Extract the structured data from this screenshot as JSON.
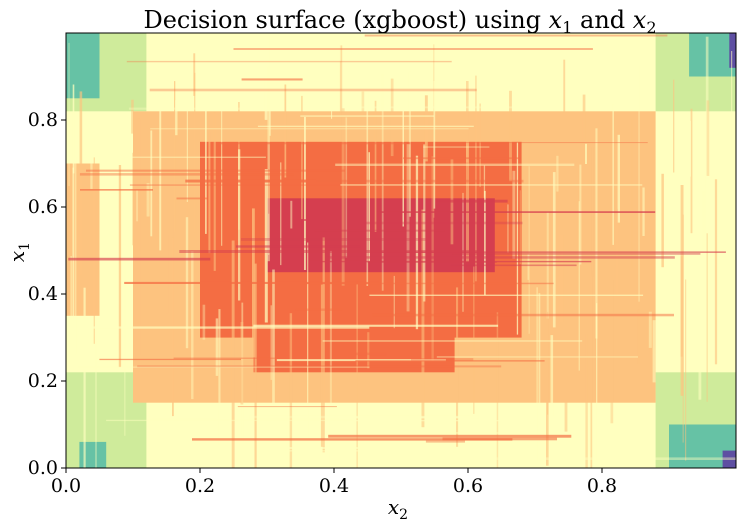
{
  "chart_data": {
    "type": "heatmap",
    "title": "Decision surface (xgboost) using x₁ and x₂",
    "title_parts": {
      "prefix": "Decision surface (xgboost) using ",
      "var1": "x",
      "sub1": "1",
      "middle": " and ",
      "var2": "x",
      "sub2": "2"
    },
    "xlabel": {
      "var": "x",
      "sub": "2"
    },
    "ylabel": {
      "var": "x",
      "sub": "1"
    },
    "xlim": [
      0,
      1
    ],
    "ylim": [
      0,
      1
    ],
    "xticks": [
      0.0,
      0.2,
      0.4,
      0.6,
      0.8
    ],
    "xtick_labels": [
      "0.0",
      "0.2",
      "0.4",
      "0.6",
      "0.8"
    ],
    "yticks": [
      0.0,
      0.2,
      0.4,
      0.6,
      0.8
    ],
    "ytick_labels": [
      "0.0",
      "0.2",
      "0.4",
      "0.6",
      "0.8"
    ],
    "grid": false,
    "colormap": "Spectral",
    "palette": [
      "#5e4fa2",
      "#66c2a5",
      "#cfeb9b",
      "#ffffbf",
      "#fdc37f",
      "#f46d43",
      "#d53e4f"
    ],
    "approx_levels_description": "low at corners, highest near the centre",
    "regions": [
      {
        "x": [
          0.0,
          1.0
        ],
        "y": [
          0.0,
          1.0
        ],
        "level": 3
      },
      {
        "x": [
          0.0,
          0.12
        ],
        "y": [
          0.0,
          0.22
        ],
        "level": 2
      },
      {
        "x": [
          0.88,
          1.0
        ],
        "y": [
          0.0,
          0.22
        ],
        "level": 2
      },
      {
        "x": [
          0.0,
          0.12
        ],
        "y": [
          0.82,
          1.0
        ],
        "level": 2
      },
      {
        "x": [
          0.88,
          1.0
        ],
        "y": [
          0.82,
          1.0
        ],
        "level": 2
      },
      {
        "x": [
          0.0,
          0.05
        ],
        "y": [
          0.85,
          1.0
        ],
        "level": 1
      },
      {
        "x": [
          0.93,
          1.0
        ],
        "y": [
          0.9,
          1.0
        ],
        "level": 1
      },
      {
        "x": [
          0.9,
          1.0
        ],
        "y": [
          0.0,
          0.1
        ],
        "level": 1
      },
      {
        "x": [
          0.02,
          0.06
        ],
        "y": [
          0.0,
          0.06
        ],
        "level": 1
      },
      {
        "x": [
          0.99,
          1.0
        ],
        "y": [
          0.92,
          1.0
        ],
        "level": 0
      },
      {
        "x": [
          0.98,
          1.0
        ],
        "y": [
          0.0,
          0.04
        ],
        "level": 0
      },
      {
        "x": [
          0.1,
          0.88
        ],
        "y": [
          0.15,
          0.82
        ],
        "level": 4
      },
      {
        "x": [
          0.0,
          0.05
        ],
        "y": [
          0.35,
          0.7
        ],
        "level": 4
      },
      {
        "x": [
          0.2,
          0.68
        ],
        "y": [
          0.3,
          0.75
        ],
        "level": 5
      },
      {
        "x": [
          0.28,
          0.58
        ],
        "y": [
          0.22,
          0.3
        ],
        "level": 5
      },
      {
        "x": [
          0.3,
          0.64
        ],
        "y": [
          0.45,
          0.62
        ],
        "level": 6
      }
    ],
    "grain": {
      "xlines": 150,
      "ylines": 70
    }
  }
}
